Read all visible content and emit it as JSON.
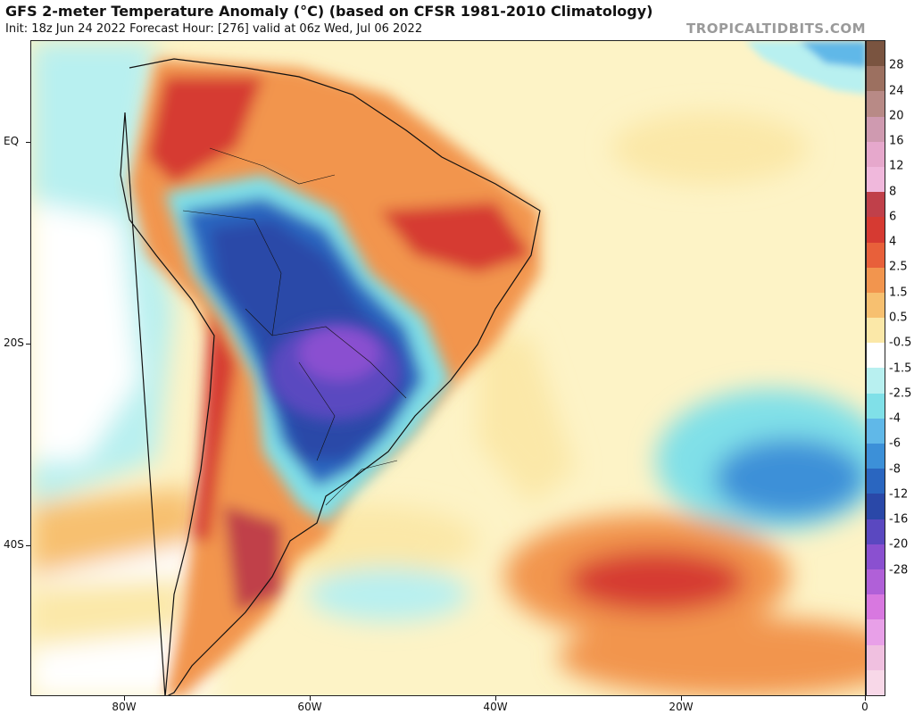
{
  "header": {
    "title": "GFS 2-meter Temperature Anomaly (°C) (based on CFSR 1981-2010 Climatology)",
    "subtitle": "Init: 18z Jun 24 2022   Forecast Hour: [276]   valid at 06z Wed, Jul 06 2022",
    "site": "TROPICALTIDBITS.COM"
  },
  "axes": {
    "lat_labels": [
      "EQ",
      "20S",
      "40S"
    ],
    "lon_labels": [
      "80W",
      "60W",
      "40W",
      "20W",
      "0"
    ]
  },
  "colorbar": {
    "labels": [
      "28",
      "24",
      "20",
      "16",
      "12",
      "8",
      "6",
      "4",
      "2.5",
      "1.5",
      "0.5",
      "-0.5",
      "-1.5",
      "-2.5",
      "-4",
      "-6",
      "-8",
      "-12",
      "-16",
      "-20",
      "-28"
    ],
    "colors": [
      "#7a5440",
      "#9c7060",
      "#b88a86",
      "#cf9ab0",
      "#e6a8cc",
      "#f0b8dc",
      "#c0404a",
      "#d63a32",
      "#e8603a",
      "#f2954e",
      "#f7c070",
      "#fbe8a8",
      "#ffffff",
      "#b8f0f0",
      "#80e0e8",
      "#60b8e8",
      "#3c90d8",
      "#2a66c0",
      "#2a48a8",
      "#5a48c0",
      "#8a50d0",
      "#b060d8",
      "#d878e0",
      "#e8a0e8",
      "#f0c0e0",
      "#f8d8e8"
    ]
  },
  "map": {
    "ocean_color": "#fdf3c6",
    "land_cool_color": "#2a4aa8",
    "land_warm_color": "#d45030",
    "purple_core_color": "#8a50d0"
  }
}
